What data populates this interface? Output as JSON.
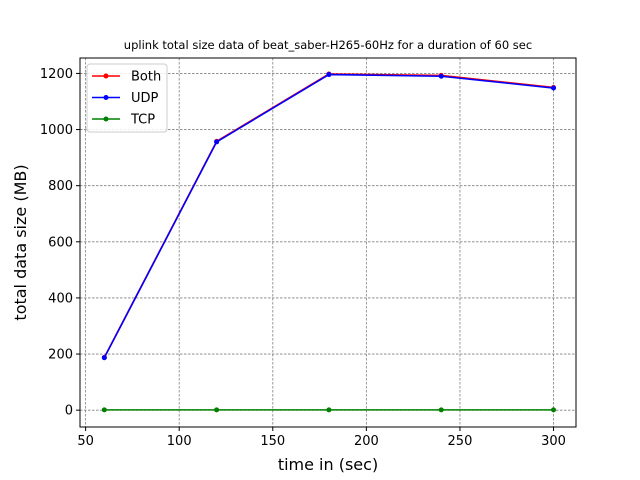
{
  "chart_data": {
    "type": "line",
    "title": "uplink total size data of beat_saber-H265-60Hz for a duration of 60 sec",
    "xlabel": "time in (sec)",
    "ylabel": "total data size (MB)",
    "xlim": [
      47,
      312
    ],
    "ylim": [
      -60,
      1255
    ],
    "xticks": [
      50,
      100,
      150,
      200,
      250,
      300
    ],
    "yticks": [
      0,
      200,
      400,
      600,
      800,
      1000,
      1200
    ],
    "grid": true,
    "legend_position": "top-left",
    "x": [
      60,
      120,
      180,
      240,
      300
    ],
    "series": [
      {
        "name": "Both",
        "color": "#ff0000",
        "values": [
          188,
          958,
          1198,
          1193,
          1150
        ]
      },
      {
        "name": "UDP",
        "color": "#0000ff",
        "values": [
          187,
          956,
          1196,
          1190,
          1148
        ]
      },
      {
        "name": "TCP",
        "color": "#008000",
        "values": [
          1,
          1,
          1,
          1,
          1
        ]
      }
    ]
  }
}
